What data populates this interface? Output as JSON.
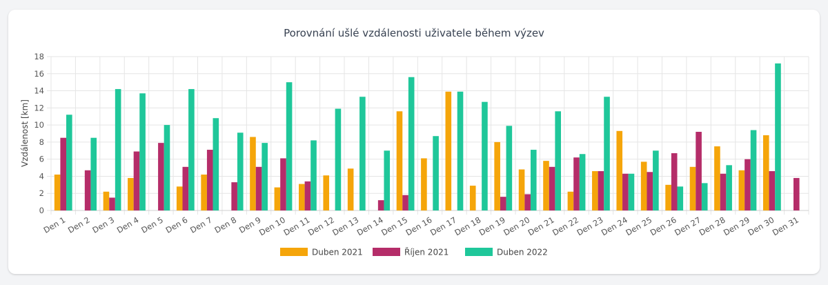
{
  "chart_data": {
    "type": "bar",
    "title": "Porovnání ušlé vzdálenosti uživatele během výzev",
    "ylabel": "Vzdálenost [km]",
    "xlabel": "",
    "ylim": [
      0,
      18
    ],
    "yticks": [
      0,
      2,
      4,
      6,
      8,
      10,
      12,
      14,
      16,
      18
    ],
    "grid": true,
    "legend_position": "bottom",
    "categories": [
      "Den 1",
      "Den 2",
      "Den 3",
      "Den 4",
      "Den 5",
      "Den 6",
      "Den 7",
      "Den 8",
      "Den 9",
      "Den 10",
      "Den 11",
      "Den 12",
      "Den 13",
      "Den 14",
      "Den 15",
      "Den 16",
      "Den 17",
      "Den 18",
      "Den 19",
      "Den 20",
      "Den 21",
      "Den 22",
      "Den 23",
      "Den 24",
      "Den 25",
      "Den 26",
      "Den 27",
      "Den 28",
      "Den 29",
      "Den 30",
      "Den 31"
    ],
    "series": [
      {
        "name": "Duben 2021",
        "color": "#f5a50a",
        "values": [
          4.2,
          0,
          2.2,
          3.8,
          0,
          2.8,
          4.2,
          0,
          8.6,
          2.7,
          3.1,
          4.1,
          4.9,
          0,
          11.6,
          6.1,
          13.9,
          2.9,
          8.0,
          4.8,
          5.8,
          2.2,
          4.6,
          9.3,
          5.7,
          3.0,
          5.1,
          7.5,
          4.7,
          8.8,
          0
        ]
      },
      {
        "name": "Říjen 2021",
        "color": "#b52d69",
        "values": [
          8.5,
          4.7,
          1.5,
          6.9,
          7.9,
          5.1,
          7.1,
          3.3,
          5.1,
          6.1,
          3.4,
          0,
          0,
          1.2,
          1.8,
          0,
          0,
          0,
          1.6,
          1.9,
          5.1,
          6.2,
          4.6,
          4.3,
          4.5,
          6.7,
          9.2,
          4.3,
          6.0,
          4.6,
          3.8
        ]
      },
      {
        "name": "Duben 2022",
        "color": "#1fc79a",
        "values": [
          11.2,
          8.5,
          14.2,
          13.7,
          10.0,
          14.2,
          10.8,
          9.1,
          7.9,
          15.0,
          8.2,
          11.9,
          13.3,
          7.0,
          15.6,
          8.7,
          13.9,
          12.7,
          9.9,
          7.1,
          11.6,
          6.6,
          13.3,
          4.3,
          7.0,
          2.8,
          3.2,
          5.3,
          9.4,
          17.2,
          0
        ]
      }
    ]
  }
}
